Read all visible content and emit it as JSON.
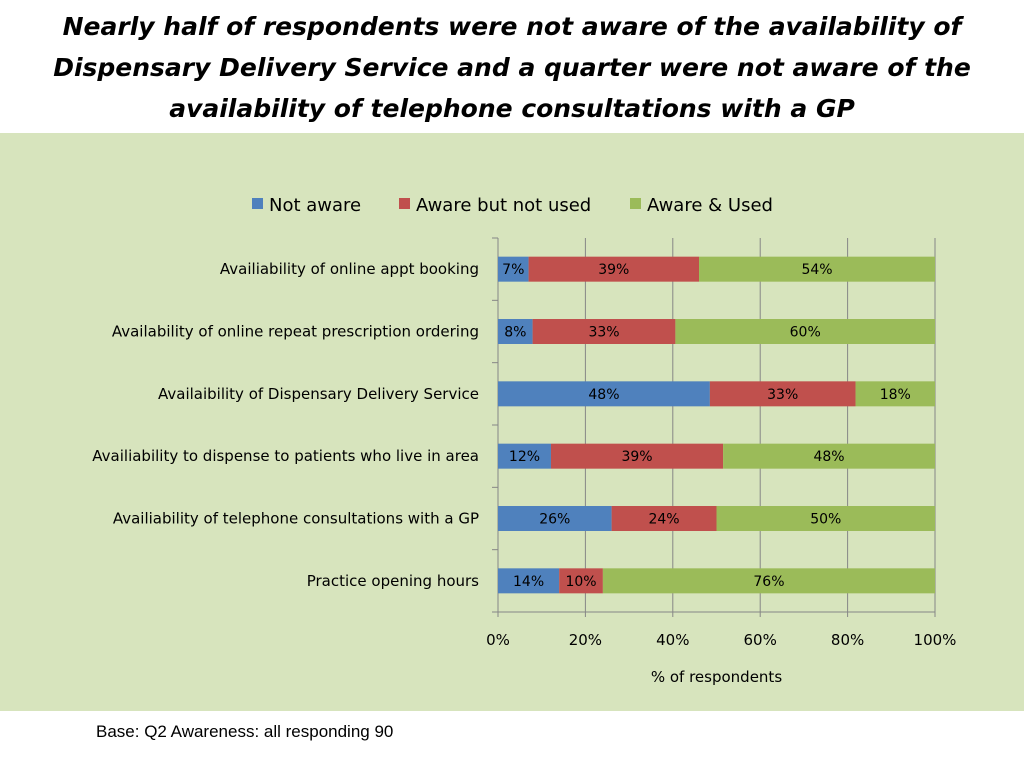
{
  "title": "Nearly half of respondents were not aware of the availability of Dispensary Delivery Service and a quarter were not aware of the availability of telephone consultations with a GP",
  "footnote": "Base: Q2 Awareness: all responding 90",
  "chart_data": {
    "type": "bar",
    "orientation": "horizontal",
    "stacked": "percent",
    "categories": [
      "Availiability of online appt booking",
      "Availability of online repeat prescription ordering",
      "Availaibility of Dispensary  Delivery Service",
      "Availiability to dispense to patients who live in area",
      "Availiability of telephone  consultations with a GP",
      "Practice opening hours"
    ],
    "series": [
      {
        "name": "Not aware",
        "color": "#4f81bd",
        "values": [
          7,
          8,
          48,
          12,
          26,
          14
        ]
      },
      {
        "name": "Aware but not used",
        "color": "#c0504d",
        "values": [
          39,
          33,
          33,
          39,
          24,
          10
        ]
      },
      {
        "name": "Aware & Used",
        "color": "#9bbb59",
        "values": [
          54,
          60,
          18,
          48,
          50,
          76
        ]
      }
    ],
    "xlabel": "% of respondents",
    "xlim": [
      0,
      100
    ],
    "xticks": [
      "0%",
      "20%",
      "40%",
      "60%",
      "80%",
      "100%"
    ],
    "grid": true,
    "legend": "top"
  }
}
